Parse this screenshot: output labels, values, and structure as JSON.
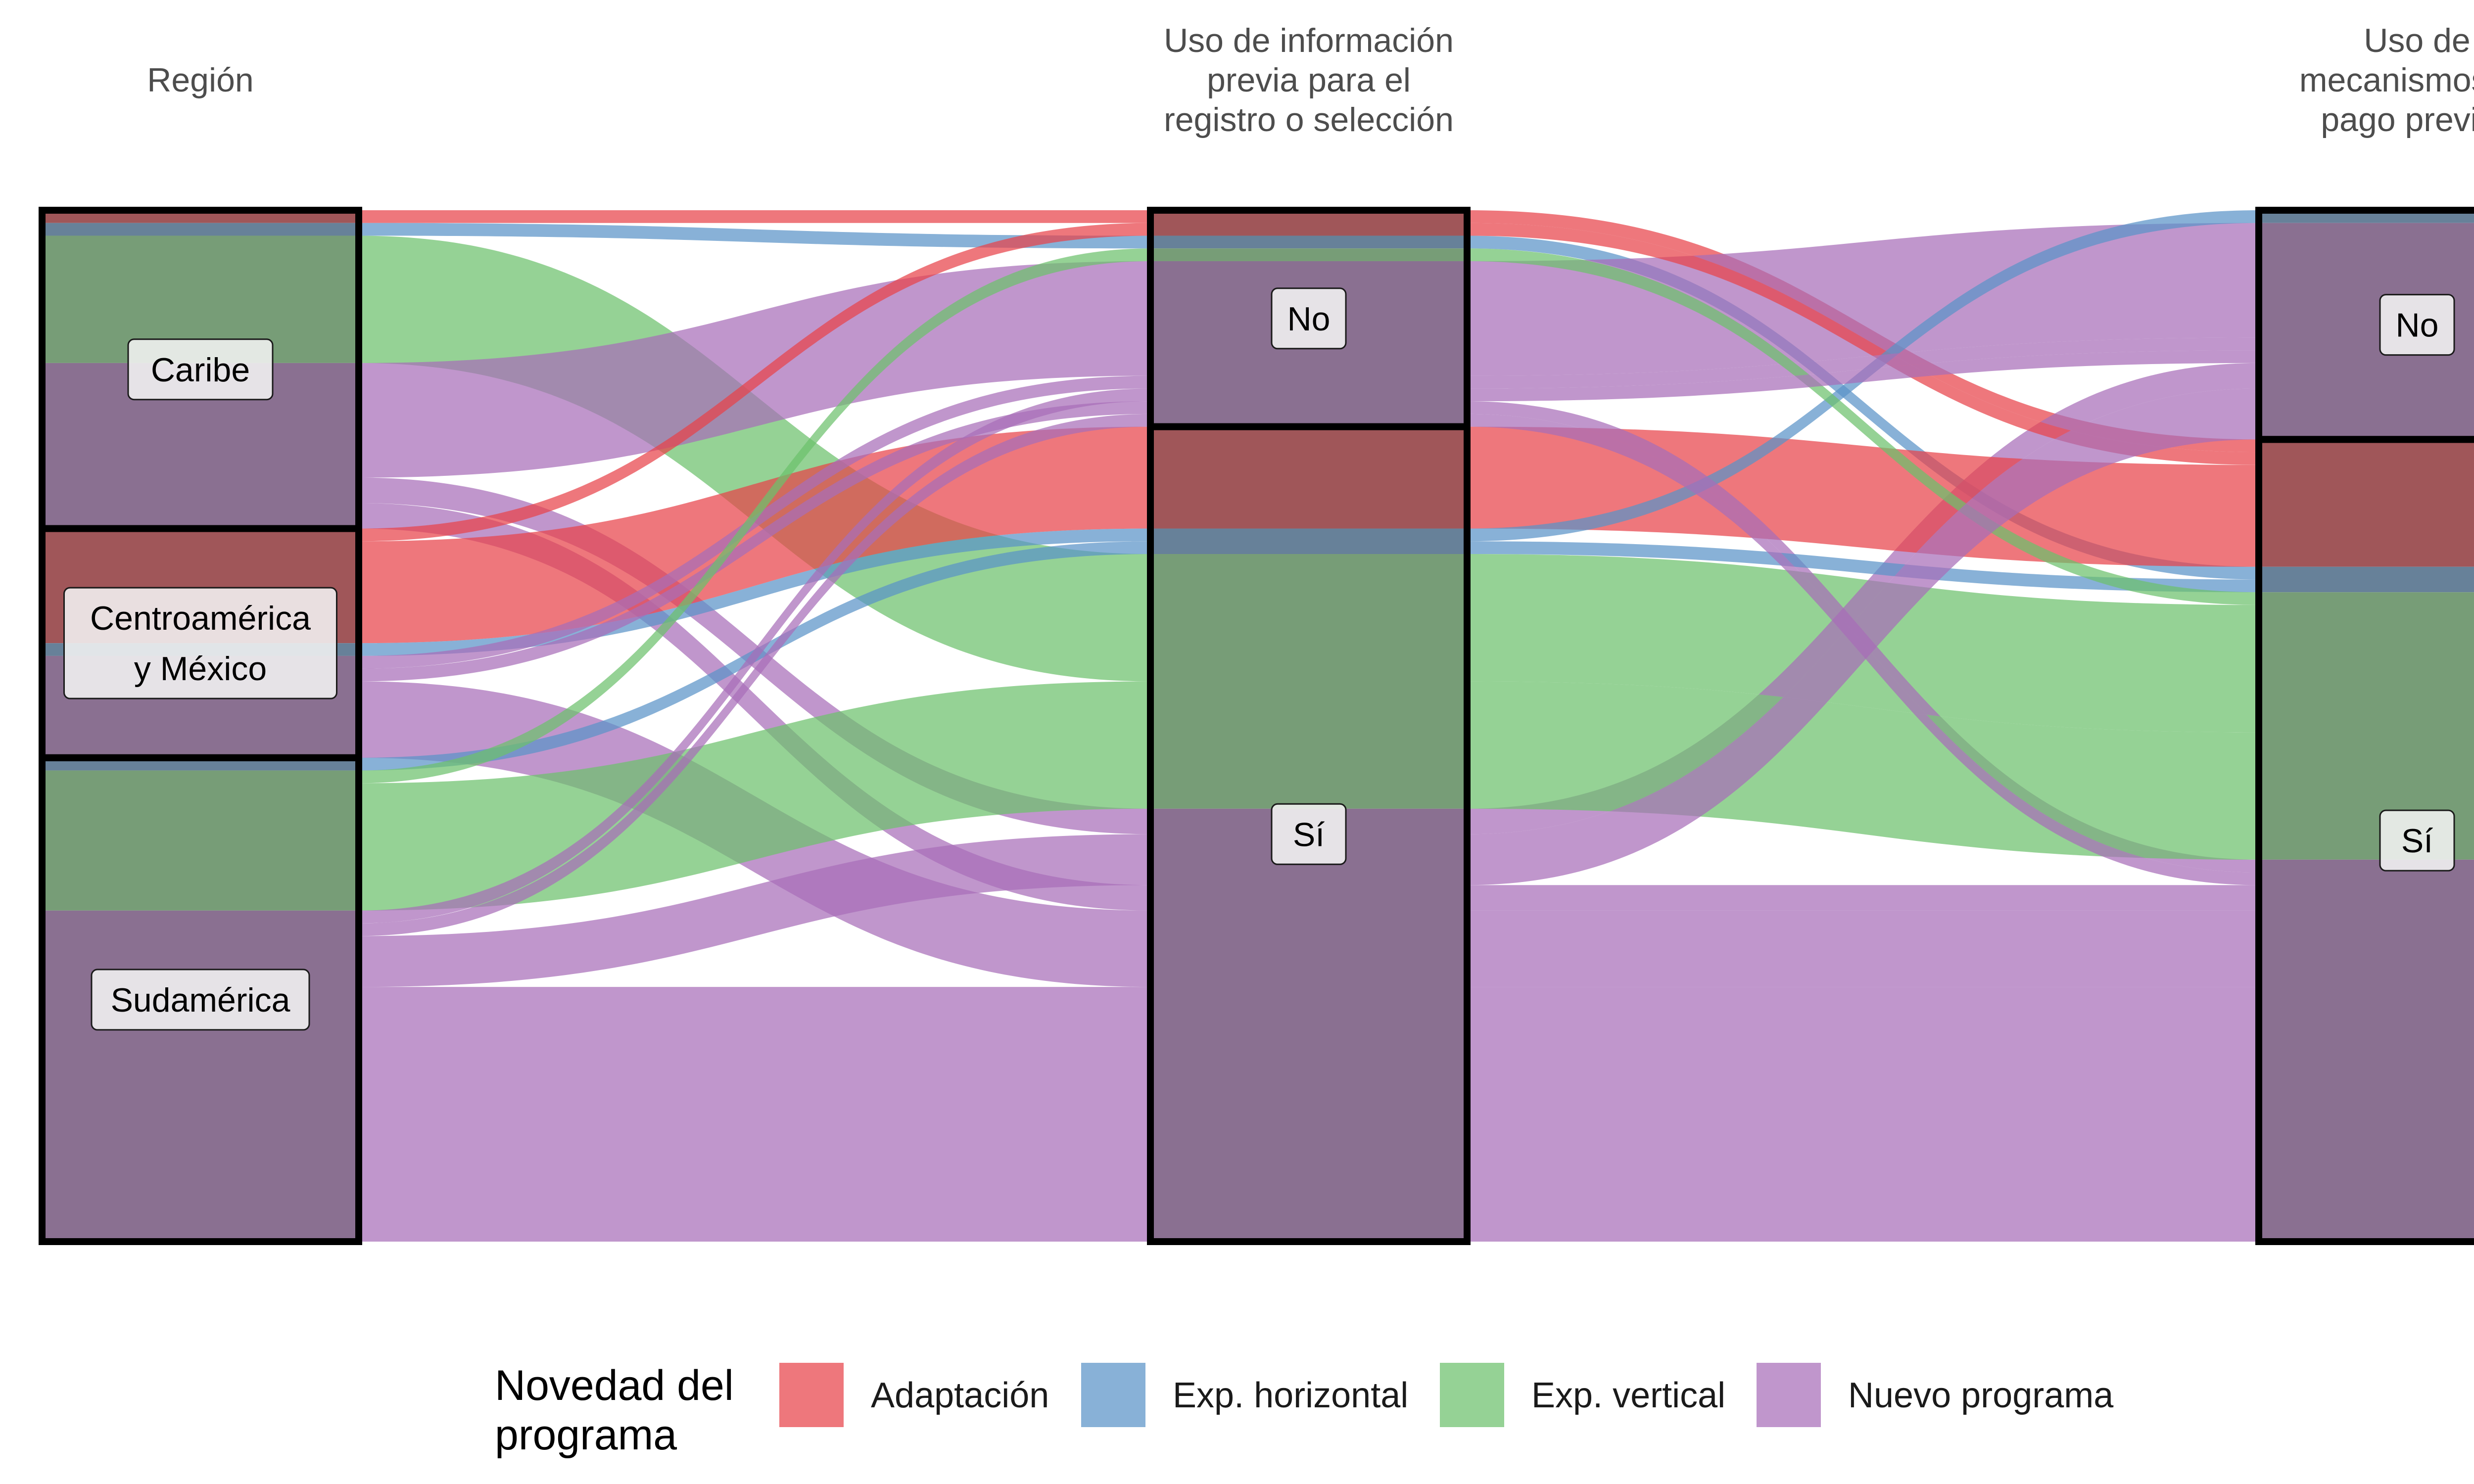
{
  "chart_data": {
    "type": "alluvial",
    "title": "",
    "axes": [
      {
        "key": "region",
        "title": "Región"
      },
      {
        "key": "info",
        "title": "Uso de información previa para el registro o selección"
      },
      {
        "key": "pago",
        "title": "Uso de mecanismos de pago previos"
      }
    ],
    "strata": [
      {
        "axis": "region",
        "order": [
          "Caribe",
          "Centroamérica y México",
          "Sudamérica"
        ]
      },
      {
        "axis": "info",
        "order": [
          "No",
          "Sí"
        ]
      },
      {
        "axis": "pago",
        "order": [
          "No",
          "Sí"
        ]
      }
    ],
    "fill_variable": "Novedad del programa",
    "fill_order": [
      "Adaptación",
      "Exp. horizontal",
      "Exp. vertical",
      "Nuevo programa"
    ],
    "flows": [
      {
        "region": "Caribe",
        "info": "No",
        "pago": "Sí",
        "novedad": "Adaptación",
        "value": 1
      },
      {
        "region": "Caribe",
        "info": "No",
        "pago": "Sí",
        "novedad": "Exp. horizontal",
        "value": 1
      },
      {
        "region": "Caribe",
        "info": "Sí",
        "pago": "Sí",
        "novedad": "Exp. vertical",
        "value": 10
      },
      {
        "region": "Caribe",
        "info": "No",
        "pago": "No",
        "novedad": "Nuevo programa",
        "value": 9
      },
      {
        "region": "Caribe",
        "info": "Sí",
        "pago": "No",
        "novedad": "Nuevo programa",
        "value": 2
      },
      {
        "region": "Caribe",
        "info": "Sí",
        "pago": "Sí",
        "novedad": "Nuevo programa",
        "value": 2
      },
      {
        "region": "Centroamérica y México",
        "info": "No",
        "pago": "Sí",
        "novedad": "Adaptación",
        "value": 1
      },
      {
        "region": "Centroamérica y México",
        "info": "Sí",
        "pago": "Sí",
        "novedad": "Adaptación",
        "value": 8
      },
      {
        "region": "Centroamérica y México",
        "info": "Sí",
        "pago": "No",
        "novedad": "Exp. horizontal",
        "value": 1
      },
      {
        "region": "Centroamérica y México",
        "info": "No",
        "pago": "No",
        "novedad": "Nuevo programa",
        "value": 1
      },
      {
        "region": "Centroamérica y México",
        "info": "No",
        "pago": "Sí",
        "novedad": "Nuevo programa",
        "value": 1
      },
      {
        "region": "Centroamérica y México",
        "info": "Sí",
        "pago": "Sí",
        "novedad": "Nuevo programa",
        "value": 6
      },
      {
        "region": "Sudamérica",
        "info": "Sí",
        "pago": "Sí",
        "novedad": "Exp. horizontal",
        "value": 1
      },
      {
        "region": "Sudamérica",
        "info": "No",
        "pago": "Sí",
        "novedad": "Exp. vertical",
        "value": 1
      },
      {
        "region": "Sudamérica",
        "info": "Sí",
        "pago": "Sí",
        "novedad": "Exp. vertical",
        "value": 10
      },
      {
        "region": "Sudamérica",
        "info": "No",
        "pago": "No",
        "novedad": "Nuevo programa",
        "value": 1
      },
      {
        "region": "Sudamérica",
        "info": "No",
        "pago": "Sí",
        "novedad": "Nuevo programa",
        "value": 1
      },
      {
        "region": "Sudamérica",
        "info": "Sí",
        "pago": "No",
        "novedad": "Nuevo programa",
        "value": 4
      },
      {
        "region": "Sudamérica",
        "info": "Sí",
        "pago": "Sí",
        "novedad": "Nuevo programa",
        "value": 20
      }
    ]
  },
  "legend": {
    "title_lines": [
      "Novedad del",
      "programa"
    ],
    "items": [
      {
        "label": "Adaptación",
        "color": "#e8434a"
      },
      {
        "label": "Exp. horizontal",
        "color": "#5a93c7"
      },
      {
        "label": "Exp. vertical",
        "color": "#6cc06c"
      },
      {
        "label": "Nuevo programa",
        "color": "#a86db8"
      }
    ]
  },
  "colors": {
    "flow_alpha": 0.72,
    "stratum_alpha": 0.95
  }
}
